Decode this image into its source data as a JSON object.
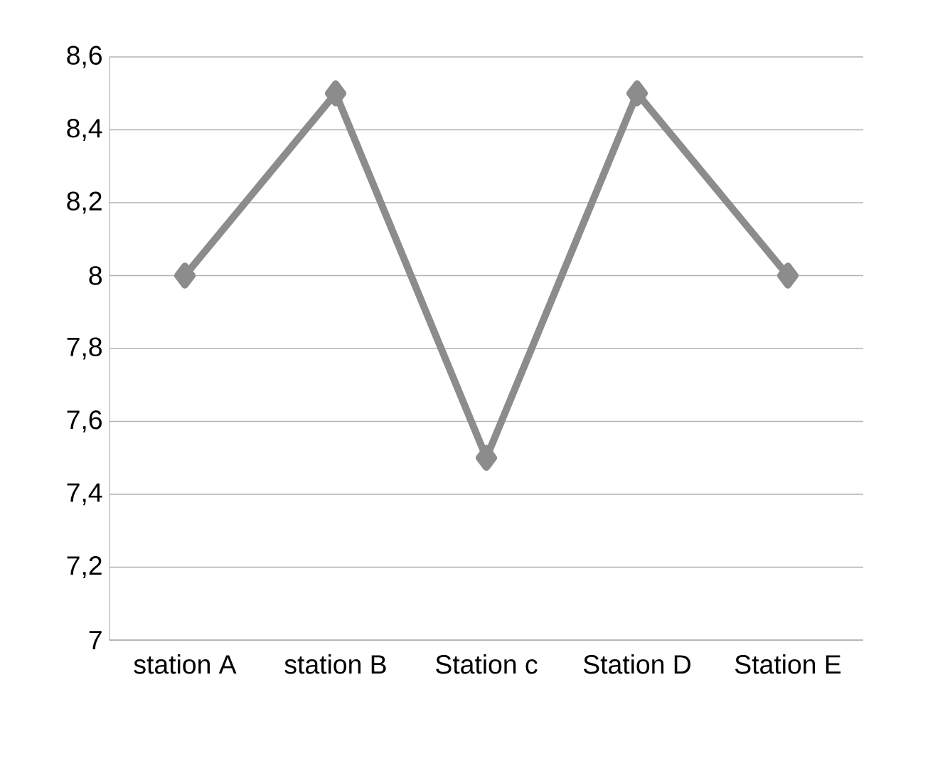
{
  "chart_data": {
    "type": "line",
    "categories": [
      "station  A",
      "station B",
      "Station c",
      "Station D",
      "Station E"
    ],
    "series": [
      {
        "color": "#8c8c8c",
        "values": [
          8,
          8.5,
          7.5,
          8.5,
          8
        ]
      }
    ],
    "ylim": [
      7,
      8.6
    ],
    "yticks": [
      7,
      {
        "value": 7.2,
        "label": "7,2"
      },
      {
        "value": 7.4,
        "label": "7,4"
      },
      {
        "value": 7.6,
        "label": "7,6"
      },
      {
        "value": 7.8,
        "label": "7,8"
      },
      8,
      {
        "value": 8.2,
        "label": "8,2"
      },
      {
        "value": 8.4,
        "label": "8,4"
      },
      {
        "value": 8.6,
        "label": "8,6"
      }
    ],
    "grid": "y",
    "legend": false,
    "marker": "diamond",
    "line_style": "solid"
  }
}
